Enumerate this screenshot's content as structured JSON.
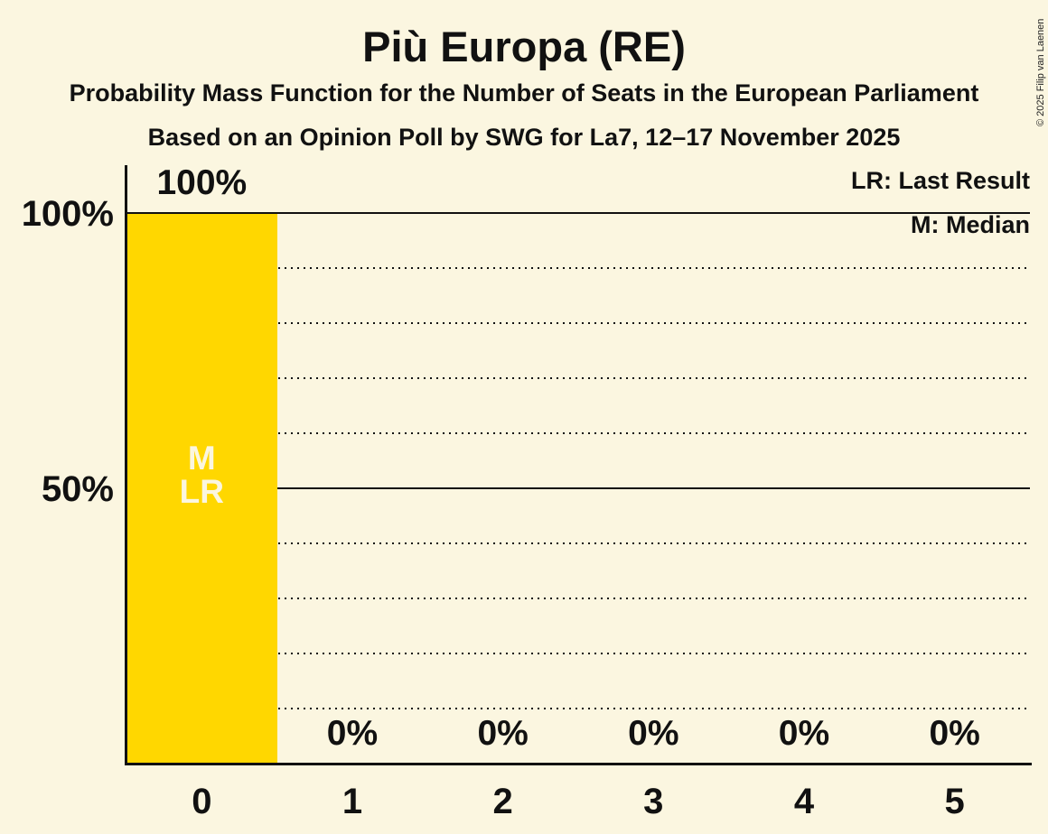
{
  "title": "Più Europa (RE)",
  "subtitle": "Probability Mass Function for the Number of Seats in the European Parliament",
  "subsubtitle": "Based on an Opinion Poll by SWG for La7, 12–17 November 2025",
  "copyright": "© 2025 Filip van Laenen",
  "legend": {
    "lr": "LR: Last Result",
    "m": "M: Median"
  },
  "y_axis": {
    "label_100": "100%",
    "label_50": "50%"
  },
  "colors": {
    "background": "#FBF6E0",
    "bar": "#FFD700",
    "text": "#111111",
    "bar_annotation_text": "#FBF6E0"
  },
  "chart_data": {
    "type": "bar",
    "title": "Più Europa (RE)",
    "categories": [
      "0",
      "1",
      "2",
      "3",
      "4",
      "5"
    ],
    "values": [
      100,
      0,
      0,
      0,
      0,
      0
    ],
    "value_labels": [
      "100%",
      "0%",
      "0%",
      "0%",
      "0%",
      "0%"
    ],
    "ylim": [
      0,
      100
    ],
    "y_tick_labels": [
      "100%",
      "50%"
    ],
    "solid_gridlines_pct": [
      100,
      50
    ],
    "dotted_gridlines_pct": [
      90,
      80,
      70,
      60,
      40,
      30,
      20,
      10
    ],
    "legend_entries": [
      "LR: Last Result",
      "M: Median"
    ],
    "annotations": {
      "category": "0",
      "labels": [
        "M",
        "LR"
      ]
    }
  }
}
